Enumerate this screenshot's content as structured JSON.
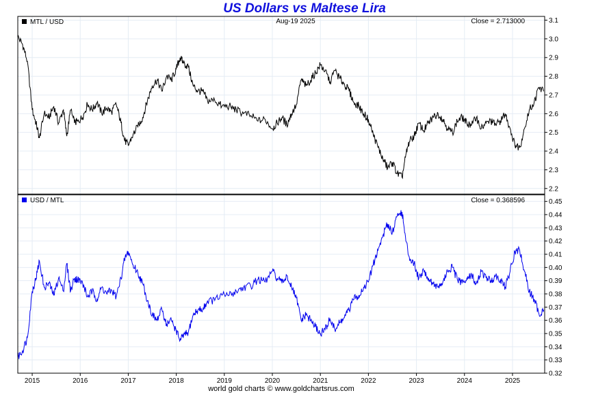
{
  "title": "US Dollars vs Maltese Lira",
  "footer": "world gold charts © www.goldchartsrus.com",
  "chart_data": [
    {
      "type": "line",
      "legend": "MTL / USD",
      "date_label": "Aug-19  2025",
      "close_label": "Close = 2.713000",
      "color": "#000000",
      "ylim": [
        2.17,
        3.12
      ],
      "yticks": [
        "3.1",
        "3.0",
        "2.9",
        "2.8",
        "2.7",
        "2.6",
        "2.5",
        "2.4",
        "2.3",
        "2.2"
      ],
      "xlim": [
        2014.7,
        2025.67
      ],
      "xticks": [
        "2015",
        "2016",
        "2017",
        "2018",
        "2019",
        "2020",
        "2021",
        "2022",
        "2023",
        "2024",
        "2025"
      ],
      "series": [
        {
          "x": [
            2014.7,
            2014.8,
            2014.9,
            2015.0,
            2015.08,
            2015.15,
            2015.25,
            2015.35,
            2015.45,
            2015.55,
            2015.65,
            2015.72,
            2015.8,
            2015.88,
            2015.95,
            2016.05,
            2016.15,
            2016.25,
            2016.35,
            2016.45,
            2016.55,
            2016.65,
            2016.75,
            2016.85,
            2016.92,
            2017.0,
            2017.1,
            2017.2,
            2017.3,
            2017.4,
            2017.5,
            2017.6,
            2017.7,
            2017.8,
            2017.9,
            2018.0,
            2018.08,
            2018.15,
            2018.25,
            2018.35,
            2018.45,
            2018.55,
            2018.65,
            2018.8,
            2018.95,
            2019.1,
            2019.25,
            2019.4,
            2019.55,
            2019.7,
            2019.85,
            2020.0,
            2020.1,
            2020.2,
            2020.3,
            2020.4,
            2020.5,
            2020.6,
            2020.7,
            2020.8,
            2020.9,
            2021.0,
            2021.1,
            2021.2,
            2021.3,
            2021.4,
            2021.5,
            2021.6,
            2021.7,
            2021.8,
            2021.9,
            2022.0,
            2022.1,
            2022.2,
            2022.3,
            2022.4,
            2022.5,
            2022.6,
            2022.7,
            2022.78,
            2022.85,
            2022.95,
            2023.05,
            2023.15,
            2023.25,
            2023.35,
            2023.45,
            2023.55,
            2023.65,
            2023.75,
            2023.85,
            2023.95,
            2024.05,
            2024.15,
            2024.25,
            2024.35,
            2024.45,
            2024.55,
            2024.65,
            2024.75,
            2024.85,
            2024.95,
            2025.05,
            2025.15,
            2025.25,
            2025.35,
            2025.45,
            2025.55,
            2025.65
          ],
          "y": [
            3.01,
            2.97,
            2.88,
            2.62,
            2.55,
            2.47,
            2.6,
            2.58,
            2.64,
            2.55,
            2.62,
            2.48,
            2.62,
            2.55,
            2.56,
            2.58,
            2.65,
            2.62,
            2.66,
            2.6,
            2.63,
            2.61,
            2.65,
            2.55,
            2.46,
            2.43,
            2.49,
            2.53,
            2.58,
            2.67,
            2.75,
            2.78,
            2.72,
            2.8,
            2.78,
            2.84,
            2.9,
            2.87,
            2.85,
            2.75,
            2.72,
            2.72,
            2.67,
            2.67,
            2.64,
            2.64,
            2.62,
            2.6,
            2.59,
            2.56,
            2.57,
            2.52,
            2.55,
            2.58,
            2.54,
            2.6,
            2.65,
            2.78,
            2.75,
            2.78,
            2.82,
            2.86,
            2.83,
            2.77,
            2.83,
            2.79,
            2.76,
            2.72,
            2.66,
            2.64,
            2.6,
            2.57,
            2.49,
            2.42,
            2.36,
            2.31,
            2.34,
            2.28,
            2.26,
            2.38,
            2.45,
            2.48,
            2.55,
            2.51,
            2.55,
            2.58,
            2.6,
            2.57,
            2.52,
            2.5,
            2.56,
            2.58,
            2.55,
            2.54,
            2.58,
            2.52,
            2.55,
            2.56,
            2.54,
            2.56,
            2.6,
            2.52,
            2.43,
            2.42,
            2.52,
            2.62,
            2.66,
            2.74,
            2.72
          ]
        }
      ]
    },
    {
      "type": "line",
      "legend": "USD / MTL",
      "close_label": "Close = 0.368596",
      "color": "#0000ee",
      "ylim": [
        0.32,
        0.455
      ],
      "yticks": [
        "0.45",
        "0.44",
        "0.43",
        "0.42",
        "0.41",
        "0.40",
        "0.39",
        "0.38",
        "0.37",
        "0.36",
        "0.35",
        "0.34",
        "0.33",
        "0.32"
      ],
      "xlim": [
        2014.7,
        2025.67
      ],
      "xticks": [
        "2015",
        "2016",
        "2017",
        "2018",
        "2019",
        "2020",
        "2021",
        "2022",
        "2023",
        "2024",
        "2025"
      ],
      "series": [
        {
          "x": [
            2014.7,
            2014.8,
            2014.9,
            2015.0,
            2015.08,
            2015.15,
            2015.25,
            2015.35,
            2015.45,
            2015.55,
            2015.65,
            2015.72,
            2015.8,
            2015.88,
            2015.95,
            2016.05,
            2016.15,
            2016.25,
            2016.35,
            2016.45,
            2016.55,
            2016.65,
            2016.75,
            2016.85,
            2016.92,
            2017.0,
            2017.1,
            2017.2,
            2017.3,
            2017.4,
            2017.5,
            2017.6,
            2017.7,
            2017.8,
            2017.9,
            2018.0,
            2018.08,
            2018.15,
            2018.25,
            2018.35,
            2018.45,
            2018.55,
            2018.65,
            2018.8,
            2018.95,
            2019.1,
            2019.25,
            2019.4,
            2019.55,
            2019.7,
            2019.85,
            2020.0,
            2020.1,
            2020.2,
            2020.3,
            2020.4,
            2020.5,
            2020.6,
            2020.7,
            2020.8,
            2020.9,
            2021.0,
            2021.1,
            2021.2,
            2021.3,
            2021.4,
            2021.5,
            2021.6,
            2021.7,
            2021.8,
            2021.9,
            2022.0,
            2022.1,
            2022.2,
            2022.3,
            2022.4,
            2022.5,
            2022.6,
            2022.7,
            2022.78,
            2022.85,
            2022.95,
            2023.05,
            2023.15,
            2023.25,
            2023.35,
            2023.45,
            2023.55,
            2023.65,
            2023.75,
            2023.85,
            2023.95,
            2024.05,
            2024.15,
            2024.25,
            2024.35,
            2024.45,
            2024.55,
            2024.65,
            2024.75,
            2024.85,
            2024.95,
            2025.05,
            2025.15,
            2025.25,
            2025.35,
            2025.45,
            2025.55,
            2025.65
          ],
          "y": [
            0.332,
            0.337,
            0.347,
            0.382,
            0.392,
            0.405,
            0.385,
            0.388,
            0.379,
            0.392,
            0.382,
            0.403,
            0.382,
            0.392,
            0.391,
            0.388,
            0.378,
            0.382,
            0.376,
            0.385,
            0.38,
            0.383,
            0.378,
            0.392,
            0.406,
            0.412,
            0.402,
            0.396,
            0.388,
            0.375,
            0.364,
            0.36,
            0.368,
            0.357,
            0.36,
            0.352,
            0.345,
            0.348,
            0.351,
            0.364,
            0.368,
            0.368,
            0.375,
            0.375,
            0.379,
            0.379,
            0.382,
            0.385,
            0.386,
            0.391,
            0.389,
            0.397,
            0.392,
            0.388,
            0.394,
            0.385,
            0.377,
            0.36,
            0.364,
            0.36,
            0.355,
            0.35,
            0.353,
            0.361,
            0.353,
            0.358,
            0.362,
            0.368,
            0.376,
            0.379,
            0.385,
            0.389,
            0.402,
            0.413,
            0.424,
            0.433,
            0.427,
            0.439,
            0.442,
            0.42,
            0.408,
            0.403,
            0.392,
            0.398,
            0.392,
            0.388,
            0.385,
            0.389,
            0.397,
            0.4,
            0.391,
            0.388,
            0.392,
            0.394,
            0.388,
            0.397,
            0.392,
            0.39,
            0.394,
            0.391,
            0.385,
            0.397,
            0.412,
            0.413,
            0.397,
            0.382,
            0.376,
            0.365,
            0.368
          ]
        }
      ]
    }
  ]
}
